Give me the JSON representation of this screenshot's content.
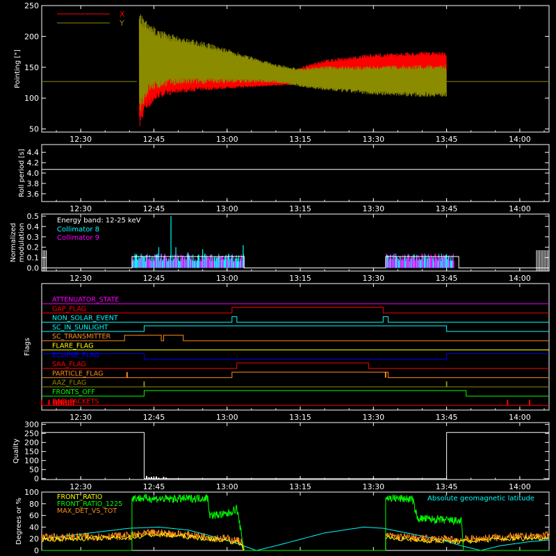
{
  "colors": {
    "background": "#000000",
    "axes": "#ffffff",
    "x_red": "#ff0000",
    "y_olive": "#8b8b00",
    "cyan": "#00ffff",
    "magenta": "#ff00ff",
    "green": "#00ff00",
    "orange": "#ff8c1a",
    "yellow": "#ffff00",
    "blue": "#0000ff"
  },
  "time_ticks": [
    "12:30",
    "12:45",
    "13:00",
    "13:15",
    "13:30",
    "13:45",
    "14:00"
  ],
  "time_tick_minutes": [
    30,
    45,
    60,
    75,
    90,
    105,
    120
  ],
  "time_range_minutes": [
    22,
    126
  ],
  "chart_data": [
    {
      "type": "line",
      "id": "pointing",
      "ylabel": "Pointing [\"]",
      "ylim": [
        45,
        250
      ],
      "yticks": [
        50,
        100,
        150,
        200,
        250
      ],
      "legend": [
        "X",
        "Y"
      ],
      "series": [
        {
          "name": "X",
          "color": "#ff0000",
          "envelope": [
            [
              41.5,
              127,
              127
            ],
            [
              42,
              45,
              220
            ],
            [
              43,
              75,
              205
            ],
            [
              46,
              100,
              175
            ],
            [
              50,
              108,
              165
            ],
            [
              55,
              112,
              155
            ],
            [
              60,
              115,
              145
            ],
            [
              66,
              118,
              140
            ],
            [
              70,
              120,
              135
            ],
            [
              75,
              122,
              150
            ],
            [
              80,
              125,
              162
            ],
            [
              90,
              128,
              172
            ],
            [
              100,
              130,
              175
            ],
            [
              105,
              130,
              175
            ]
          ]
        },
        {
          "name": "Y",
          "color": "#8b8b00",
          "envelope": [
            [
              41.5,
              127,
              127
            ],
            [
              42,
              75,
              240
            ],
            [
              44,
              110,
              220
            ],
            [
              48,
              120,
              205
            ],
            [
              55,
              123,
              192
            ],
            [
              60,
              124,
              180
            ],
            [
              66,
              125,
              165
            ],
            [
              70,
              125,
              155
            ],
            [
              75,
              118,
              148
            ],
            [
              80,
              112,
              152
            ],
            [
              90,
              105,
              152
            ],
            [
              100,
              102,
              154
            ],
            [
              105,
              102,
              154
            ]
          ]
        }
      ],
      "baseline": 127,
      "data_end_minute": 105
    },
    {
      "type": "line",
      "id": "roll-period",
      "ylabel": "Roll period [s]",
      "ylim": [
        3.45,
        4.55
      ],
      "yticks": [
        "3.6",
        "3.8",
        "4.0",
        "4.2",
        "4.4"
      ],
      "series": [
        {
          "name": "",
          "values": [
            4.07
          ]
        }
      ]
    },
    {
      "type": "bar",
      "id": "modulation",
      "ylabel": "Normalized modulation",
      "ylim": [
        -0.03,
        0.52
      ],
      "yticks": [
        "0.0",
        "0.1",
        "0.2",
        "0.3",
        "0.4",
        "0.5"
      ],
      "legend_text": "Energy band: 12-25 keV",
      "series": [
        {
          "name": "Collimator 8",
          "color": "#00ffff"
        },
        {
          "name": "Collimator 9",
          "color": "#ff00ff"
        }
      ],
      "active_intervals": [
        [
          40.5,
          63.5
        ],
        [
          92.5,
          106.5
        ]
      ],
      "noise_level": 0.1,
      "peaks": [
        [
          46,
          0.2
        ],
        [
          48.5,
          0.5
        ],
        [
          49.5,
          0.2
        ],
        [
          52,
          0.15
        ],
        [
          55,
          0.18
        ],
        [
          63.3,
          0.22
        ]
      ],
      "white_level": 0.11,
      "white_intervals": [
        [
          40.5,
          63.5
        ],
        [
          92.5,
          107.5
        ]
      ]
    },
    {
      "type": "line",
      "id": "flags",
      "ylabel": "Flags",
      "rows": [
        {
          "label": "ATTENUATOR_STATE",
          "color": "#ff00ff",
          "steps": [
            [
              22,
              0
            ]
          ]
        },
        {
          "label": "GAP_FLAG",
          "color": "#ff0000",
          "steps": [
            [
              22,
              0
            ],
            [
              61,
              1
            ],
            [
              92,
              0
            ]
          ]
        },
        {
          "label": "NON_SOLAR_EVENT",
          "color": "#00ffff",
          "steps": [
            [
              22,
              0
            ],
            [
              61,
              1
            ],
            [
              62,
              0
            ],
            [
              92,
              1
            ],
            [
              93,
              0
            ]
          ]
        },
        {
          "label": "SC_IN_SUNLIGHT",
          "color": "#00ffff",
          "steps": [
            [
              22,
              0
            ],
            [
              43,
              1
            ],
            [
              105,
              0
            ]
          ]
        },
        {
          "label": "SC_TRANSMITTER",
          "color": "#ff8c1a",
          "steps": [
            [
              22,
              0
            ],
            [
              39,
              1
            ],
            [
              46.5,
              0
            ],
            [
              47,
              1
            ],
            [
              51,
              0
            ]
          ]
        },
        {
          "label": "FLARE_FLAG",
          "color": "#ffff00",
          "steps": [
            [
              22,
              0
            ]
          ]
        },
        {
          "label": "ECLIPSE_FLAG",
          "color": "#0000ff",
          "steps": [
            [
              22,
              1
            ],
            [
              43,
              0
            ],
            [
              105,
              1
            ]
          ]
        },
        {
          "label": "SAA_FLAG",
          "color": "#ff0000",
          "steps": [
            [
              22,
              0
            ],
            [
              62,
              1
            ],
            [
              89,
              0
            ]
          ]
        },
        {
          "label": "PARTICLE_FLAG",
          "color": "#ff8c1a",
          "steps": [
            [
              22,
              0
            ],
            [
              61,
              1
            ],
            [
              93,
              0
            ]
          ]
        },
        {
          "label": "AAZ_FLAG",
          "color": "#8b8b00",
          "steps": [
            [
              22,
              0
            ]
          ]
        },
        {
          "label": "FRONTS_OFF",
          "color": "#00ff00",
          "steps": [
            [
              22,
              0
            ],
            [
              43,
              1
            ],
            [
              109,
              0
            ]
          ]
        },
        {
          "label": "BAD_PACKETS",
          "color": "#ff0000",
          "steps": [
            [
              22,
              0
            ]
          ]
        }
      ],
      "spikes": [
        {
          "row": 8,
          "t": [
            39.5,
            92.5
          ]
        },
        {
          "row": 9,
          "t": [
            43,
            105
          ]
        },
        {
          "row": 11,
          "t": [
            22,
            23.5,
            24.5,
            25,
            25.5,
            26,
            26.5,
            27,
            27.5,
            28,
            28.5,
            117.5,
            122
          ]
        }
      ]
    },
    {
      "type": "line",
      "id": "quality",
      "ylabel": "Quality",
      "ylim": [
        -5,
        310
      ],
      "yticks": [
        0,
        50,
        100,
        150,
        200,
        250,
        300
      ],
      "series": [
        {
          "name": "",
          "steps": [
            [
              22,
              255
            ],
            [
              43,
              0
            ],
            [
              105,
              255
            ]
          ]
        }
      ],
      "blips": [
        [
          43.5,
          15
        ],
        [
          44,
          8
        ],
        [
          44.5,
          10
        ],
        [
          45,
          6
        ],
        [
          45.5,
          12
        ],
        [
          46,
          5
        ],
        [
          47,
          10
        ],
        [
          47.5,
          6
        ]
      ]
    },
    {
      "type": "line",
      "id": "ratios",
      "ylabel": "Degrees or %",
      "ylim": [
        0,
        100
      ],
      "yticks": [
        0,
        20,
        40,
        60,
        80,
        100
      ],
      "legend_left": [
        "FRONT_RATIO",
        "FRONT_RATIO_1225",
        "MAX_DET_VS_TOT"
      ],
      "legend_right": "Absolute geomagnetic latitude",
      "series": [
        {
          "name": "FRONT_RATIO",
          "color": "#ffff00"
        },
        {
          "name": "FRONT_RATIO_1225",
          "color": "#00ff00",
          "segments": [
            [
              [
                22,
                0
              ],
              [
                40.5,
                0
              ],
              [
                40.5,
                90
              ],
              [
                48,
                88
              ],
              [
                56,
                90
              ],
              [
                56.5,
                60
              ],
              [
                60,
                62
              ],
              [
                62,
                72
              ],
              [
                63.5,
                0
              ],
              [
                92.5,
                0
              ],
              [
                92.5,
                90
              ],
              [
                98,
                88
              ],
              [
                99,
                55
              ],
              [
                108,
                50
              ],
              [
                108.5,
                0
              ],
              [
                126,
                0
              ]
            ]
          ]
        },
        {
          "name": "MAX_DET_VS_TOT",
          "color": "#ff8c1a",
          "segments": [
            [
              [
                22,
                22
              ],
              [
                40,
                25
              ],
              [
                45,
                30
              ],
              [
                50,
                28
              ],
              [
                55,
                24
              ],
              [
                60,
                20
              ],
              [
                63,
                15
              ],
              [
                63.5,
                0
              ],
              [
                92.5,
                0
              ],
              [
                92.5,
                25
              ],
              [
                100,
                20
              ],
              [
                108,
                18
              ],
              [
                115,
                22
              ],
              [
                126,
                25
              ]
            ]
          ]
        },
        {
          "name": "Absolute geomagnetic latitude",
          "color": "#00ffff",
          "segments": [
            [
              [
                22,
                20
              ],
              [
                30,
                28
              ],
              [
                40,
                38
              ],
              [
                46,
                40
              ],
              [
                52,
                35
              ],
              [
                58,
                22
              ],
              [
                62,
                12
              ],
              [
                66,
                0
              ],
              [
                70,
                8
              ],
              [
                80,
                30
              ],
              [
                88,
                40
              ],
              [
                92,
                38
              ],
              [
                98,
                28
              ],
              [
                104,
                18
              ],
              [
                108,
                8
              ],
              [
                112,
                0
              ],
              [
                116,
                8
              ],
              [
                122,
                15
              ],
              [
                126,
                18
              ]
            ]
          ]
        }
      ]
    }
  ]
}
